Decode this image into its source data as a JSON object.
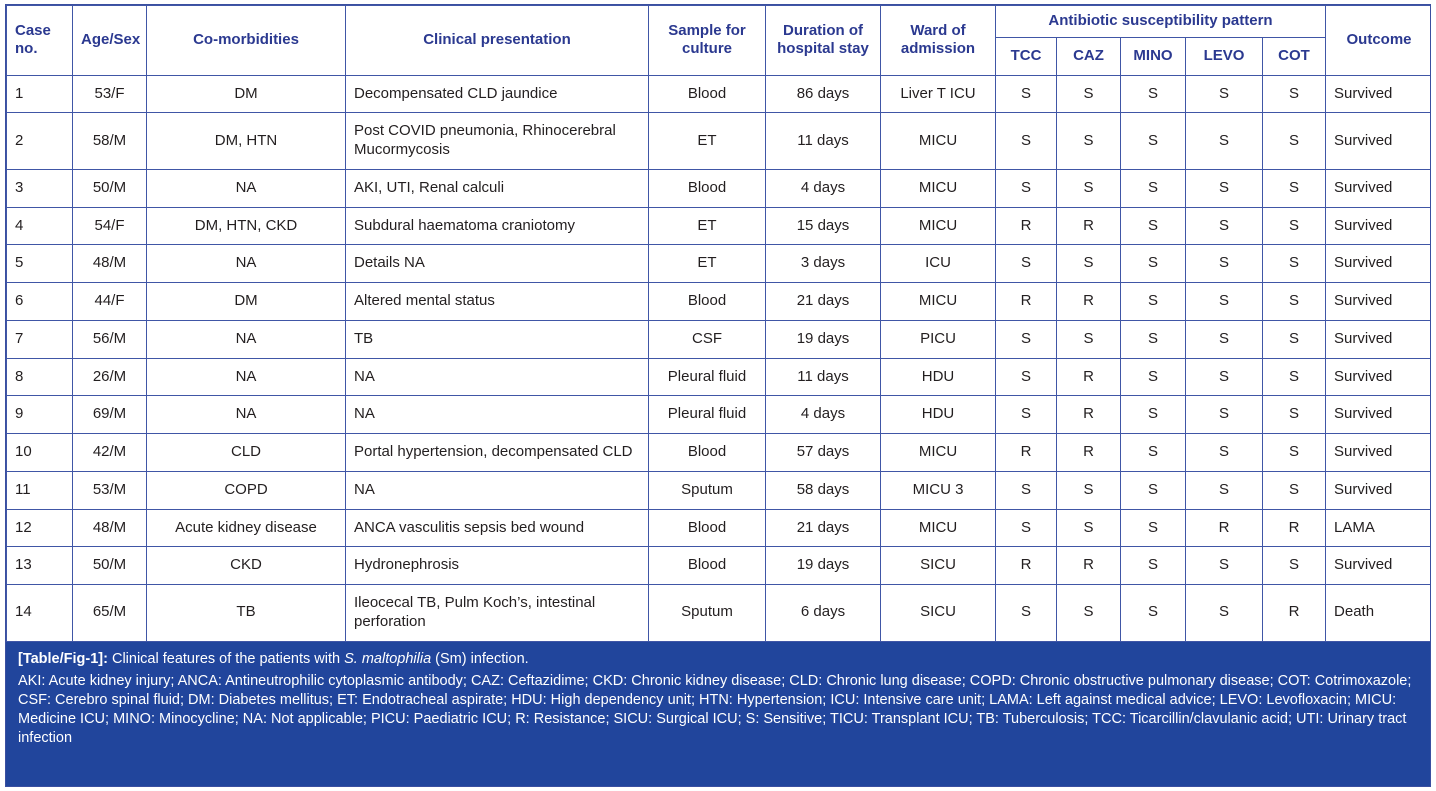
{
  "colors": {
    "header_text": "#2b3990",
    "grid_border": "#4056a6",
    "body_text": "#231f20",
    "footer_background": "#21459c",
    "footer_text": "#ffffff"
  },
  "table": {
    "header": {
      "case_no": "Case no.",
      "age_sex": "Age/Sex",
      "comorbidities": "Co-morbidities",
      "clinical_presentation": "Clinical presentation",
      "sample": "Sample for culture",
      "duration": "Duration of hospital stay",
      "ward": "Ward of admission",
      "antibiotic_group": "Antibiotic susceptibility pattern",
      "antibiotics": [
        "TCC",
        "CAZ",
        "MINO",
        "LEVO",
        "COT"
      ],
      "outcome": "Outcome"
    },
    "rows": [
      {
        "case_no": "1",
        "age_sex": "53/F",
        "comorbidities": "DM",
        "clinical_presentation": "Decompensated CLD jaundice",
        "sample": "Blood",
        "duration": "86 days",
        "ward": "Liver T ICU",
        "susceptibility": [
          "S",
          "S",
          "S",
          "S",
          "S"
        ],
        "outcome": "Survived"
      },
      {
        "case_no": "2",
        "age_sex": "58/M",
        "comorbidities": "DM, HTN",
        "clinical_presentation": "Post COVID pneumonia, Rhinocerebral Mucormycosis",
        "sample": "ET",
        "duration": "11 days",
        "ward": "MICU",
        "susceptibility": [
          "S",
          "S",
          "S",
          "S",
          "S"
        ],
        "outcome": "Survived"
      },
      {
        "case_no": "3",
        "age_sex": "50/M",
        "comorbidities": "NA",
        "clinical_presentation": "AKI, UTI, Renal calculi",
        "sample": "Blood",
        "duration": "4 days",
        "ward": "MICU",
        "susceptibility": [
          "S",
          "S",
          "S",
          "S",
          "S"
        ],
        "outcome": "Survived"
      },
      {
        "case_no": "4",
        "age_sex": "54/F",
        "comorbidities": "DM, HTN, CKD",
        "clinical_presentation": "Subdural haematoma craniotomy",
        "sample": "ET",
        "duration": "15 days",
        "ward": "MICU",
        "susceptibility": [
          "R",
          "R",
          "S",
          "S",
          "S"
        ],
        "outcome": "Survived"
      },
      {
        "case_no": "5",
        "age_sex": "48/M",
        "comorbidities": "NA",
        "clinical_presentation": "Details NA",
        "sample": "ET",
        "duration": "3 days",
        "ward": "ICU",
        "susceptibility": [
          "S",
          "S",
          "S",
          "S",
          "S"
        ],
        "outcome": "Survived"
      },
      {
        "case_no": "6",
        "age_sex": "44/F",
        "comorbidities": "DM",
        "clinical_presentation": "Altered mental status",
        "sample": "Blood",
        "duration": "21 days",
        "ward": "MICU",
        "susceptibility": [
          "R",
          "R",
          "S",
          "S",
          "S"
        ],
        "outcome": "Survived"
      },
      {
        "case_no": "7",
        "age_sex": "56/M",
        "comorbidities": "NA",
        "clinical_presentation": "TB",
        "sample": "CSF",
        "duration": "19 days",
        "ward": "PICU",
        "susceptibility": [
          "S",
          "S",
          "S",
          "S",
          "S"
        ],
        "outcome": "Survived"
      },
      {
        "case_no": "8",
        "age_sex": "26/M",
        "comorbidities": "NA",
        "clinical_presentation": "NA",
        "sample": "Pleural fluid",
        "duration": "11 days",
        "ward": "HDU",
        "susceptibility": [
          "S",
          "R",
          "S",
          "S",
          "S"
        ],
        "outcome": "Survived"
      },
      {
        "case_no": "9",
        "age_sex": "69/M",
        "comorbidities": "NA",
        "clinical_presentation": "NA",
        "sample": "Pleural fluid",
        "duration": "4 days",
        "ward": "HDU",
        "susceptibility": [
          "S",
          "R",
          "S",
          "S",
          "S"
        ],
        "outcome": "Survived"
      },
      {
        "case_no": "10",
        "age_sex": "42/M",
        "comorbidities": "CLD",
        "clinical_presentation": "Portal hypertension, decompensated CLD",
        "sample": "Blood",
        "duration": "57 days",
        "ward": "MICU",
        "susceptibility": [
          "R",
          "R",
          "S",
          "S",
          "S"
        ],
        "outcome": "Survived"
      },
      {
        "case_no": "11",
        "age_sex": "53/M",
        "comorbidities": "COPD",
        "clinical_presentation": "NA",
        "sample": "Sputum",
        "duration": "58 days",
        "ward": "MICU 3",
        "susceptibility": [
          "S",
          "S",
          "S",
          "S",
          "S"
        ],
        "outcome": "Survived"
      },
      {
        "case_no": "12",
        "age_sex": "48/M",
        "comorbidities": "Acute kidney disease",
        "clinical_presentation": "ANCA vasculitis sepsis bed wound",
        "sample": "Blood",
        "duration": "21 days",
        "ward": "MICU",
        "susceptibility": [
          "S",
          "S",
          "S",
          "R",
          "R"
        ],
        "outcome": "LAMA"
      },
      {
        "case_no": "13",
        "age_sex": "50/M",
        "comorbidities": "CKD",
        "clinical_presentation": "Hydronephrosis",
        "sample": "Blood",
        "duration": "19 days",
        "ward": "SICU",
        "susceptibility": [
          "R",
          "R",
          "S",
          "S",
          "S"
        ],
        "outcome": "Survived"
      },
      {
        "case_no": "14",
        "age_sex": "65/M",
        "comorbidities": "TB",
        "clinical_presentation": "Ileocecal TB, Pulm Koch’s, intestinal perforation",
        "sample": "Sputum",
        "duration": "6 days",
        "ward": "SICU",
        "susceptibility": [
          "S",
          "S",
          "S",
          "S",
          "R"
        ],
        "outcome": "Death"
      }
    ]
  },
  "caption": {
    "label": "[Table/Fig-1]:",
    "pre_italic": " Clinical features of the patients with ",
    "italic": "S. maltophilia",
    "post_italic": " (Sm) infection."
  },
  "abbreviations": "AKI: Acute kidney injury; ANCA: Antineutrophilic cytoplasmic antibody; CAZ: Ceftazidime; CKD: Chronic kidney disease; CLD: Chronic lung disease; COPD: Chronic obstructive pulmonary disease; COT: Cotrimoxazole; CSF: Cerebro spinal fluid; DM: Diabetes mellitus; ET: Endotracheal aspirate; HDU: High dependency unit; HTN: Hypertension; ICU: Intensive care unit; LAMA: Left against medical advice; LEVO: Levofloxacin; MICU: Medicine ICU; MINO: Minocycline; NA: Not applicable; PICU: Paediatric ICU; R: Resistance; SICU: Surgical ICU; S: Sensitive; TICU: Transplant ICU; TB: Tuberculosis; TCC: Ticarcillin/clavulanic acid; UTI: Urinary tract infection"
}
